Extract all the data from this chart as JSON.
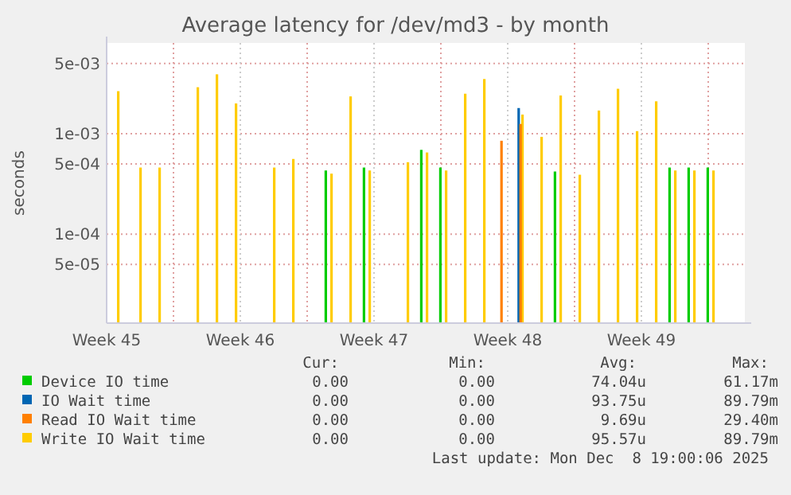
{
  "chart_data": {
    "type": "bar",
    "title": "Average latency for /dev/md3 - by month",
    "ylabel": "seconds",
    "log": "y",
    "grid": true,
    "legend": "bottom",
    "xlim": [
      "2025-11-06T12:00",
      "2025-12-09T22:00"
    ],
    "xticks": [
      {
        "value": "2025-11-06T12:00",
        "label": "Week 45"
      },
      {
        "value": "2025-11-13T12:00",
        "label": "Week 46"
      },
      {
        "value": "2025-11-20T12:00",
        "label": "Week 47"
      },
      {
        "value": "2025-11-27T12:00",
        "label": "Week 48"
      },
      {
        "value": "2025-12-04T12:00",
        "label": "Week 49"
      },
      {
        "value": "2025-11-10T00:00",
        "label": null
      },
      {
        "value": "2025-11-17T00:00",
        "label": null
      },
      {
        "value": "2025-11-24T00:00",
        "label": null
      },
      {
        "value": "2025-12-01T00:00",
        "label": null
      },
      {
        "value": "2025-12-08T00:00",
        "label": null
      }
    ],
    "ylim": [
      1.3e-05,
      0.008
    ],
    "yticks": [
      {
        "value": 0.005,
        "label": "5e-03"
      },
      {
        "value": 0.001,
        "label": "1e-03"
      },
      {
        "value": 0.0005,
        "label": "5e-04"
      },
      {
        "value": 0.0001,
        "label": "1e-04"
      },
      {
        "value": 5e-05,
        "label": "5e-05"
      }
    ],
    "series": [
      {
        "name": "Device IO time",
        "color": "#00cc00",
        "x": [
          "2025-11-18T03:00",
          "2025-11-20T03:00",
          "2025-11-23T03:00",
          "2025-11-24T03:00",
          "2025-11-30T03:00",
          "2025-12-06T03:00",
          "2025-12-07T03:00",
          "2025-12-08T03:00"
        ],
        "values": [
          0.00043,
          0.00046,
          0.00069,
          0.00046,
          0.00042,
          0.00046,
          0.00046,
          0.00046
        ]
      },
      {
        "name": "IO Wait time",
        "color": "#0066b3",
        "x": [
          "2025-11-28T03:00"
        ],
        "values": [
          0.0018
        ]
      },
      {
        "name": "Read IO Wait time",
        "color": "#ff8000",
        "x": [
          "2025-11-27T03:00",
          "2025-11-28T03:00"
        ],
        "values": [
          0.00085,
          0.00125
        ]
      },
      {
        "name": "Write IO Wait time",
        "color": "#ffcc00",
        "x": [
          "2025-11-06T23:00",
          "2025-11-08T03:00",
          "2025-11-09T03:00",
          "2025-11-11T03:00",
          "2025-11-12T03:00",
          "2025-11-13T03:00",
          "2025-11-15T03:00",
          "2025-11-16T03:00",
          "2025-11-18T03:00",
          "2025-11-19T03:00",
          "2025-11-20T03:00",
          "2025-11-22T03:00",
          "2025-11-23T03:00",
          "2025-11-24T03:00",
          "2025-11-25T03:00",
          "2025-11-26T03:00",
          "2025-11-28T03:00",
          "2025-11-29T03:00",
          "2025-11-30T03:00",
          "2025-12-01T03:00",
          "2025-12-02T03:00",
          "2025-12-03T03:00",
          "2025-12-04T03:00",
          "2025-12-05T03:00",
          "2025-12-06T03:00",
          "2025-12-07T03:00",
          "2025-12-08T03:00"
        ],
        "values": [
          0.00265,
          0.00046,
          0.00046,
          0.0029,
          0.0039,
          0.002,
          0.00046,
          0.00056,
          0.0004,
          0.00235,
          0.00043,
          0.00052,
          0.00065,
          0.00043,
          0.0025,
          0.0035,
          0.00155,
          0.00093,
          0.0024,
          0.00039,
          0.0017,
          0.0028,
          0.00106,
          0.0021,
          0.00043,
          0.00043,
          0.00043
        ]
      }
    ],
    "annotations": [
      "Cur:",
      "Min:",
      "Avg:",
      "Max:",
      "0.00",
      "0.00",
      "74.04u",
      "61.17m",
      "0.00",
      "0.00",
      "93.75u",
      "89.79m",
      "0.00",
      "0.00",
      "9.69u",
      "29.40m",
      "0.00",
      "0.00",
      "95.57u",
      "89.79m",
      "Last update: Mon Dec  8 19:00:06 2025"
    ]
  }
}
